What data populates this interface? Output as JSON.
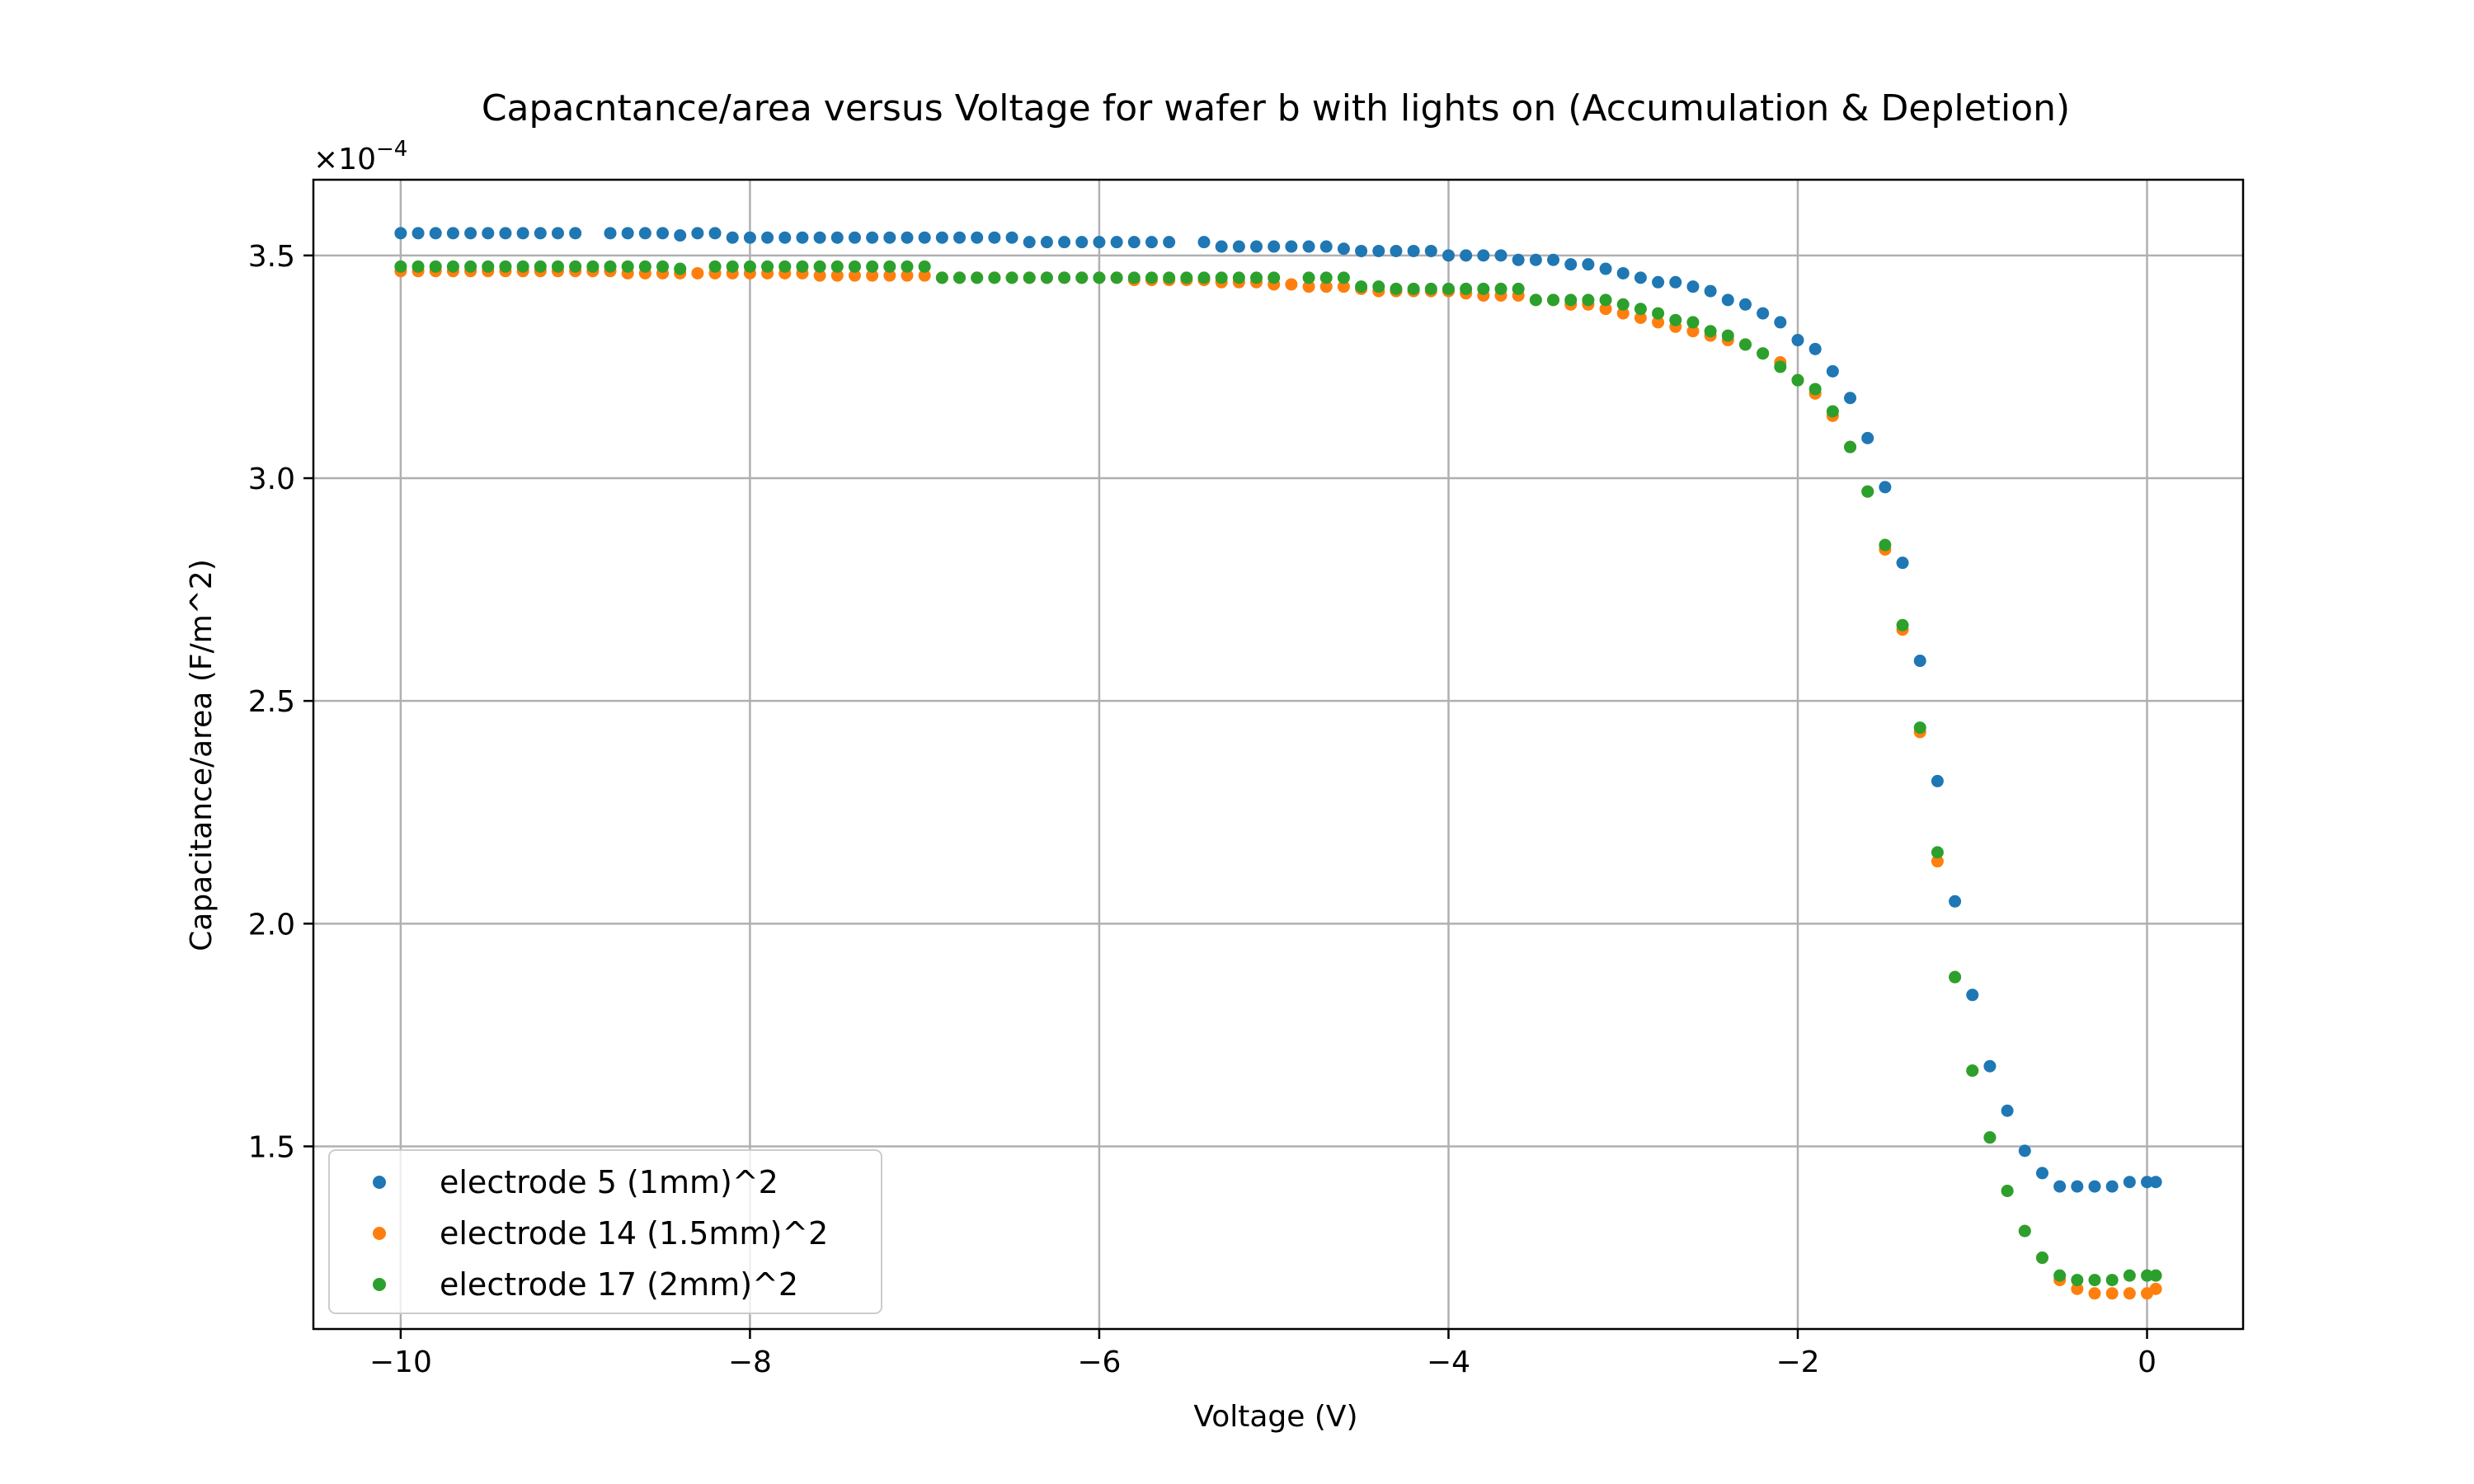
{
  "chart_data": {
    "type": "scatter",
    "title": "Capacntance/area versus Voltage for wafer b with lights on (Accumulation & Depletion)",
    "xlabel": "Voltage (V)",
    "ylabel": "Capacitance/area (F/m^2)",
    "y_offset_label": "×10",
    "y_offset_exponent": "−4",
    "xlim": [
      -10.5,
      0.55
    ],
    "ylim": [
      1.09,
      3.67
    ],
    "x_ticks": [
      -10,
      -8,
      -6,
      -4,
      -2,
      0
    ],
    "x_tick_labels": [
      "−10",
      "−8",
      "−6",
      "−4",
      "−2",
      "0"
    ],
    "y_ticks": [
      1.5,
      2.0,
      2.5,
      3.0,
      3.5
    ],
    "y_tick_labels": [
      "1.5",
      "2.0",
      "2.5",
      "3.0",
      "3.5"
    ],
    "grid": true,
    "legend_position": "lower-left",
    "series": [
      {
        "name": "electrode 5 (1mm)^2",
        "color": "#1f77b4",
        "x": [
          -10,
          -9.9,
          -9.8,
          -9.7,
          -9.6,
          -9.5,
          -9.4,
          -9.3,
          -9.2,
          -9.1,
          -9.0,
          -8.8,
          -8.7,
          -8.6,
          -8.5,
          -8.4,
          -8.3,
          -8.2,
          -8.1,
          -8.0,
          -7.9,
          -7.8,
          -7.7,
          -7.6,
          -7.5,
          -7.4,
          -7.3,
          -7.2,
          -7.1,
          -7.0,
          -6.9,
          -6.8,
          -6.7,
          -6.6,
          -6.5,
          -6.4,
          -6.3,
          -6.2,
          -6.1,
          -6.0,
          -5.9,
          -5.8,
          -5.7,
          -5.6,
          -5.4,
          -5.3,
          -5.2,
          -5.1,
          -5.0,
          -4.9,
          -4.8,
          -4.7,
          -4.6,
          -4.5,
          -4.4,
          -4.3,
          -4.2,
          -4.1,
          -4.0,
          -3.9,
          -3.8,
          -3.7,
          -3.6,
          -3.5,
          -3.4,
          -3.3,
          -3.2,
          -3.1,
          -3.0,
          -2.9,
          -2.8,
          -2.7,
          -2.6,
          -2.5,
          -2.4,
          -2.3,
          -2.2,
          -2.1,
          -2.0,
          -1.9,
          -1.8,
          -1.7,
          -1.6,
          -1.5,
          -1.4,
          -1.3,
          -1.2,
          -1.1,
          -1.0,
          -0.9,
          -0.8,
          -0.7,
          -0.6,
          -0.5,
          -0.4,
          -0.3,
          -0.2,
          -0.1,
          0.0,
          0.05
        ],
        "y": [
          3.55,
          3.55,
          3.55,
          3.55,
          3.55,
          3.55,
          3.55,
          3.55,
          3.55,
          3.55,
          3.55,
          3.55,
          3.55,
          3.55,
          3.55,
          3.545,
          3.55,
          3.55,
          3.54,
          3.54,
          3.54,
          3.54,
          3.54,
          3.54,
          3.54,
          3.54,
          3.54,
          3.54,
          3.54,
          3.54,
          3.54,
          3.54,
          3.54,
          3.54,
          3.54,
          3.53,
          3.53,
          3.53,
          3.53,
          3.53,
          3.53,
          3.53,
          3.53,
          3.53,
          3.53,
          3.52,
          3.52,
          3.52,
          3.52,
          3.52,
          3.52,
          3.52,
          3.515,
          3.51,
          3.51,
          3.51,
          3.51,
          3.51,
          3.5,
          3.5,
          3.5,
          3.5,
          3.49,
          3.49,
          3.49,
          3.48,
          3.48,
          3.47,
          3.46,
          3.45,
          3.44,
          3.44,
          3.43,
          3.42,
          3.4,
          3.39,
          3.37,
          3.35,
          3.31,
          3.29,
          3.24,
          3.18,
          3.09,
          2.98,
          2.81,
          2.59,
          2.32,
          2.05,
          1.84,
          1.68,
          1.58,
          1.49,
          1.44,
          1.41,
          1.41,
          1.41,
          1.41,
          1.42,
          1.42,
          1.42
        ]
      },
      {
        "name": "electrode 14 (1.5mm)^2",
        "color": "#ff7f0e",
        "x": [
          -10,
          -9.9,
          -9.8,
          -9.7,
          -9.6,
          -9.5,
          -9.4,
          -9.3,
          -9.2,
          -9.1,
          -9.0,
          -8.9,
          -8.8,
          -8.7,
          -8.6,
          -8.5,
          -8.4,
          -8.3,
          -8.2,
          -8.1,
          -8.0,
          -7.9,
          -7.8,
          -7.7,
          -7.6,
          -7.5,
          -7.4,
          -7.3,
          -7.2,
          -7.1,
          -7.0,
          -6.9,
          -6.8,
          -6.7,
          -6.6,
          -6.5,
          -6.4,
          -6.3,
          -6.2,
          -6.1,
          -6.0,
          -5.9,
          -5.8,
          -5.7,
          -5.6,
          -5.5,
          -5.4,
          -5.3,
          -5.2,
          -5.1,
          -5.0,
          -4.9,
          -4.8,
          -4.7,
          -4.6,
          -4.5,
          -4.4,
          -4.3,
          -4.2,
          -4.1,
          -4.0,
          -3.9,
          -3.8,
          -3.7,
          -3.6,
          -3.5,
          -3.4,
          -3.3,
          -3.2,
          -3.1,
          -3.0,
          -2.9,
          -2.8,
          -2.7,
          -2.6,
          -2.5,
          -2.4,
          -2.3,
          -2.2,
          -2.1,
          -2.0,
          -1.9,
          -1.8,
          -1.7,
          -1.6,
          -1.5,
          -1.4,
          -1.3,
          -1.2,
          -1.1,
          -1.0,
          -0.9,
          -0.8,
          -0.7,
          -0.6,
          -0.5,
          -0.4,
          -0.3,
          -0.2,
          -0.1,
          0.0,
          0.05
        ],
        "y": [
          3.465,
          3.465,
          3.465,
          3.465,
          3.465,
          3.465,
          3.465,
          3.465,
          3.465,
          3.465,
          3.465,
          3.465,
          3.465,
          3.46,
          3.46,
          3.46,
          3.46,
          3.46,
          3.46,
          3.46,
          3.46,
          3.46,
          3.46,
          3.46,
          3.455,
          3.455,
          3.455,
          3.455,
          3.455,
          3.455,
          3.455,
          3.45,
          3.45,
          3.45,
          3.45,
          3.45,
          3.45,
          3.45,
          3.45,
          3.45,
          3.45,
          3.45,
          3.445,
          3.445,
          3.445,
          3.445,
          3.445,
          3.44,
          3.44,
          3.44,
          3.435,
          3.435,
          3.43,
          3.43,
          3.43,
          3.425,
          3.42,
          3.42,
          3.42,
          3.42,
          3.42,
          3.415,
          3.41,
          3.41,
          3.41,
          3.4,
          3.4,
          3.39,
          3.39,
          3.38,
          3.37,
          3.36,
          3.35,
          3.34,
          3.33,
          3.32,
          3.31,
          3.3,
          3.28,
          3.26,
          3.22,
          3.19,
          3.14,
          3.07,
          2.97,
          2.84,
          2.66,
          2.43,
          2.14,
          1.88,
          1.67,
          1.52,
          1.4,
          1.31,
          1.25,
          1.2,
          1.18,
          1.17,
          1.17,
          1.17,
          1.17,
          1.18
        ]
      },
      {
        "name": "electrode 17 (2mm)^2",
        "color": "#2ca02c",
        "x": [
          -10,
          -9.9,
          -9.8,
          -9.7,
          -9.6,
          -9.5,
          -9.4,
          -9.3,
          -9.2,
          -9.1,
          -9.0,
          -8.9,
          -8.8,
          -8.7,
          -8.6,
          -8.5,
          -8.4,
          -8.2,
          -8.1,
          -8.0,
          -7.9,
          -7.8,
          -7.7,
          -7.6,
          -7.5,
          -7.4,
          -7.3,
          -7.2,
          -7.1,
          -7.0,
          -6.9,
          -6.8,
          -6.7,
          -6.6,
          -6.5,
          -6.4,
          -6.3,
          -6.2,
          -6.1,
          -6.0,
          -5.9,
          -5.8,
          -5.7,
          -5.6,
          -5.5,
          -5.4,
          -5.3,
          -5.2,
          -5.1,
          -5.0,
          -4.8,
          -4.7,
          -4.6,
          -4.5,
          -4.4,
          -4.3,
          -4.2,
          -4.1,
          -4.0,
          -3.9,
          -3.8,
          -3.7,
          -3.6,
          -3.5,
          -3.4,
          -3.3,
          -3.2,
          -3.1,
          -3.0,
          -2.9,
          -2.8,
          -2.7,
          -2.6,
          -2.5,
          -2.4,
          -2.3,
          -2.2,
          -2.1,
          -2.0,
          -1.9,
          -1.8,
          -1.7,
          -1.6,
          -1.5,
          -1.4,
          -1.3,
          -1.2,
          -1.1,
          -1.0,
          -0.9,
          -0.8,
          -0.7,
          -0.6,
          -0.5,
          -0.4,
          -0.3,
          -0.2,
          -0.1,
          0.0,
          0.05
        ],
        "y": [
          3.475,
          3.475,
          3.475,
          3.475,
          3.475,
          3.475,
          3.475,
          3.475,
          3.475,
          3.475,
          3.475,
          3.475,
          3.475,
          3.475,
          3.475,
          3.475,
          3.47,
          3.475,
          3.475,
          3.475,
          3.475,
          3.475,
          3.475,
          3.475,
          3.475,
          3.475,
          3.475,
          3.475,
          3.475,
          3.475,
          3.45,
          3.45,
          3.45,
          3.45,
          3.45,
          3.45,
          3.45,
          3.45,
          3.45,
          3.45,
          3.45,
          3.45,
          3.45,
          3.45,
          3.45,
          3.45,
          3.45,
          3.45,
          3.45,
          3.45,
          3.45,
          3.45,
          3.45,
          3.43,
          3.43,
          3.425,
          3.425,
          3.425,
          3.425,
          3.425,
          3.425,
          3.425,
          3.425,
          3.4,
          3.4,
          3.4,
          3.4,
          3.4,
          3.39,
          3.38,
          3.37,
          3.355,
          3.35,
          3.33,
          3.32,
          3.3,
          3.28,
          3.25,
          3.22,
          3.2,
          3.15,
          3.07,
          2.97,
          2.85,
          2.67,
          2.44,
          2.16,
          1.88,
          1.67,
          1.52,
          1.4,
          1.31,
          1.25,
          1.21,
          1.2,
          1.2,
          1.2,
          1.21,
          1.21,
          1.21
        ]
      }
    ]
  }
}
